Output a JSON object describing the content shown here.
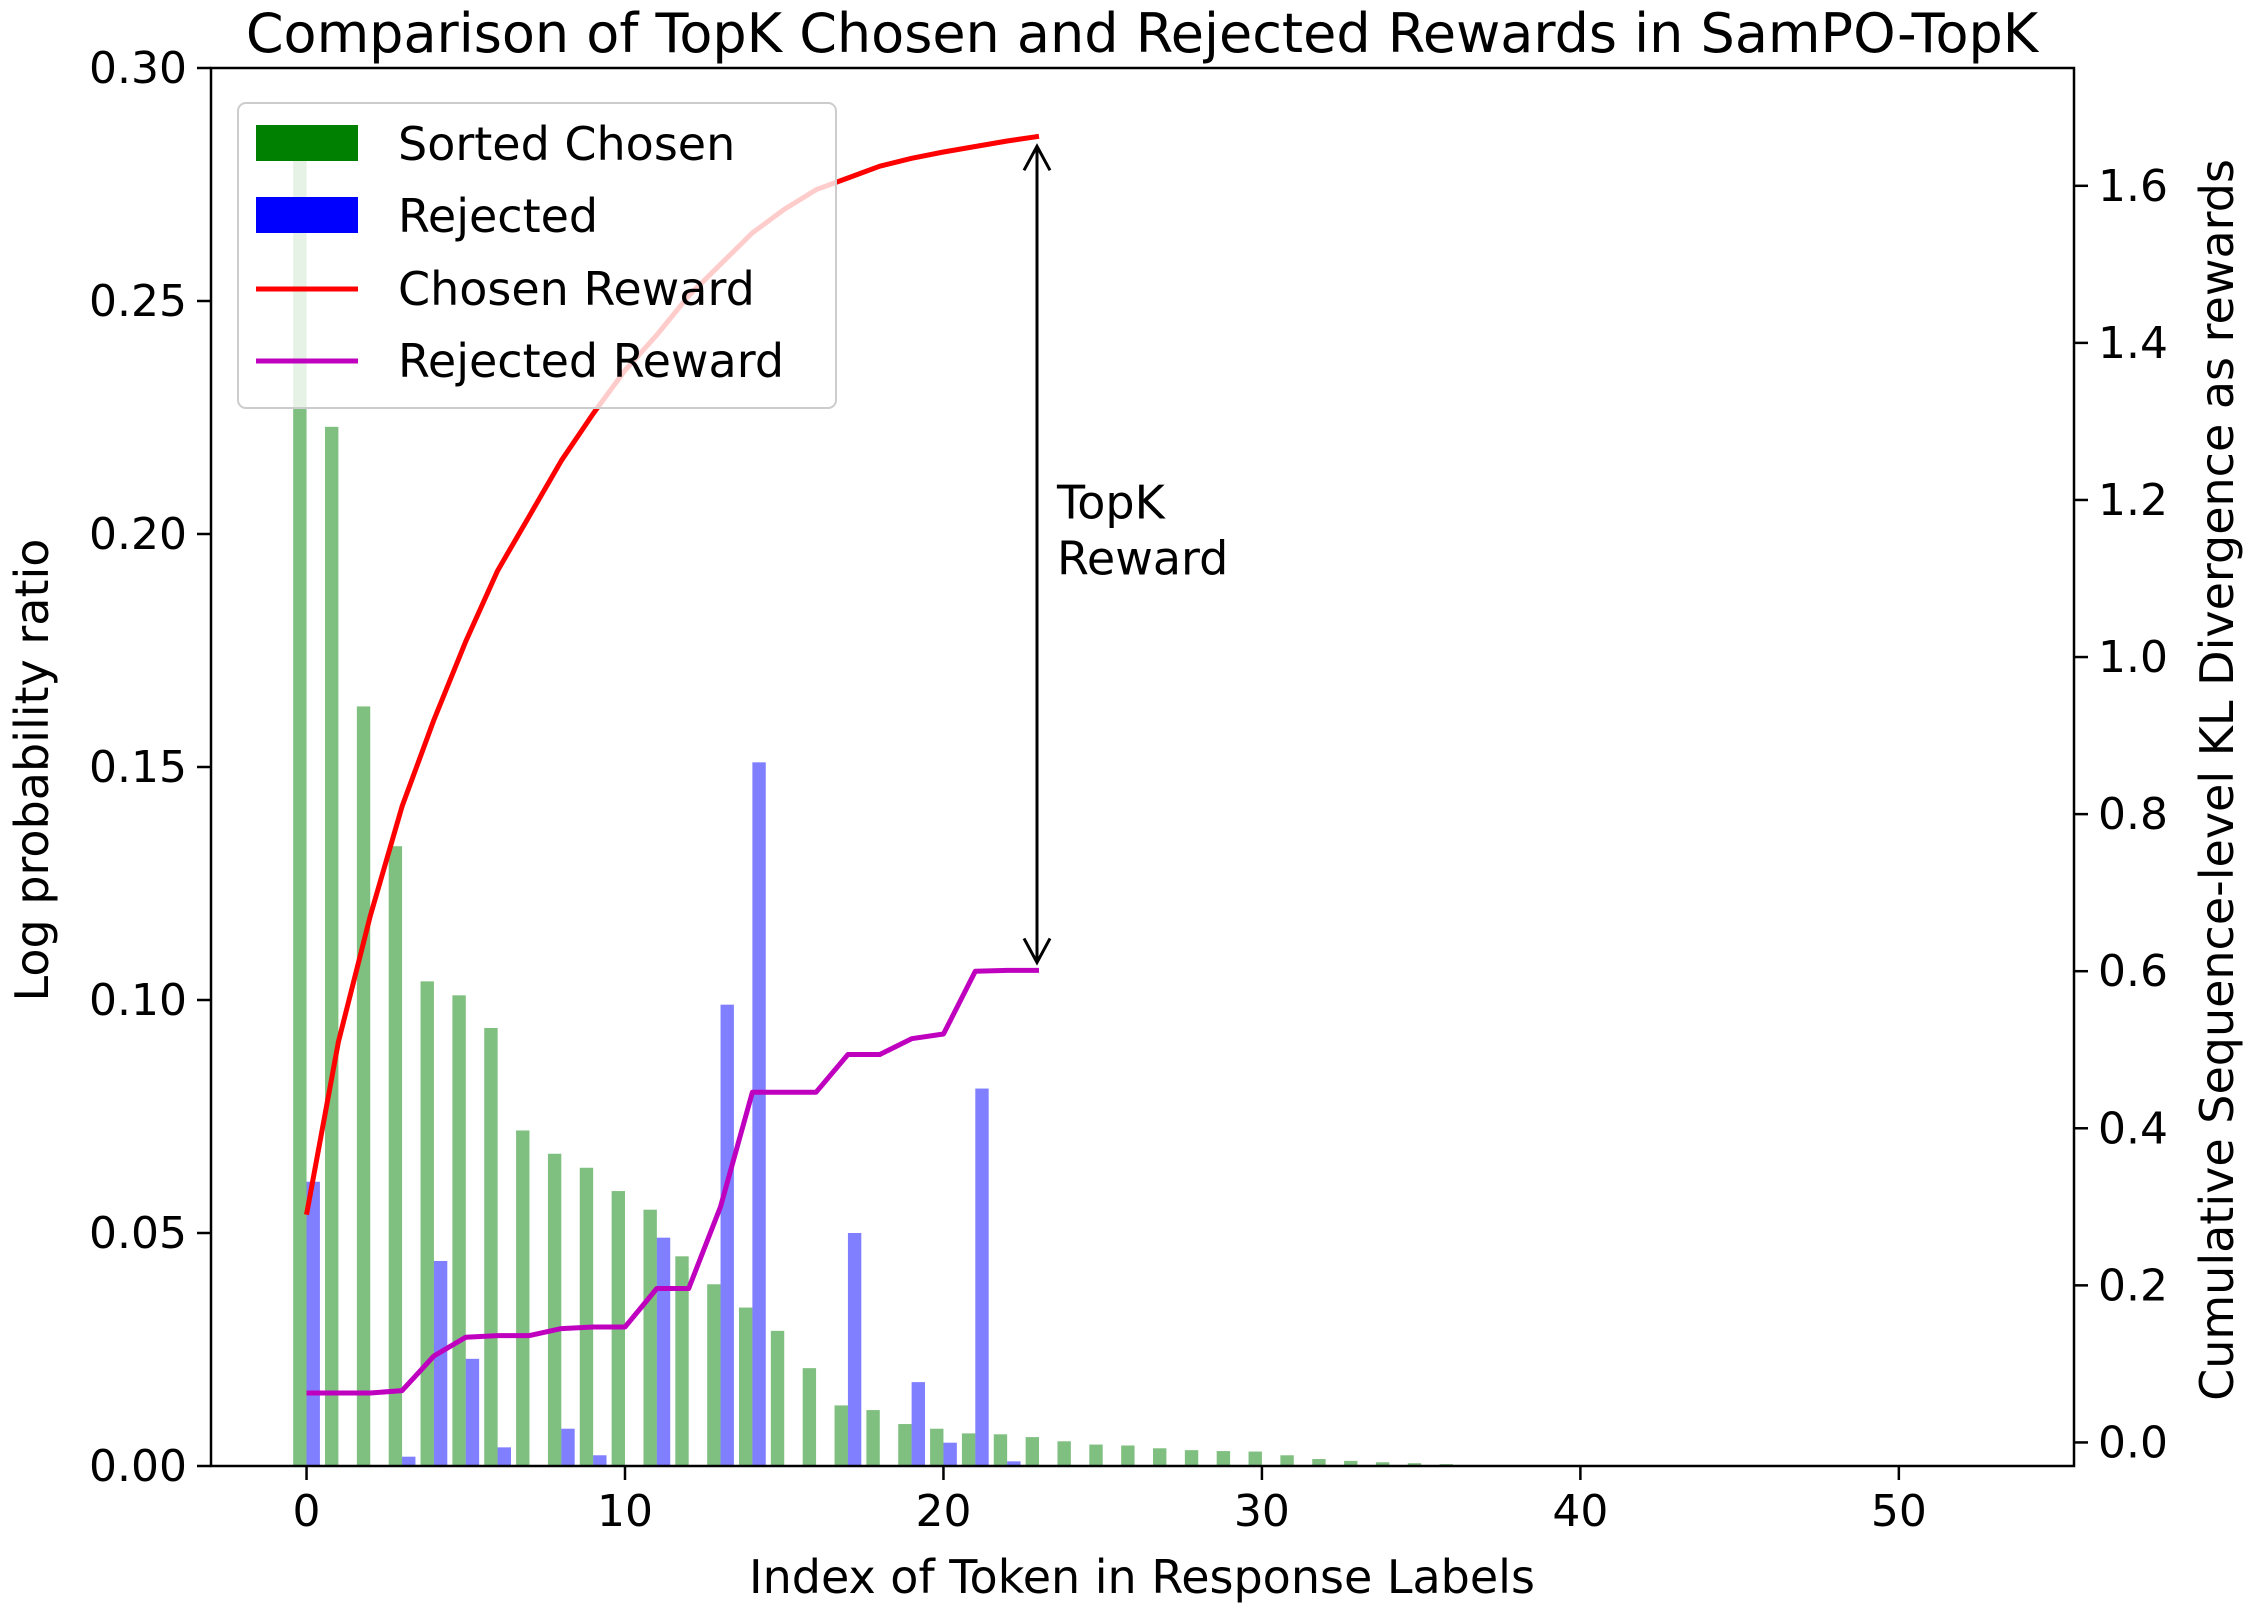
{
  "chart_data": {
    "type": "bar",
    "title": "Comparison of TopK Chosen and Rejected Rewards in SamPO-TopK",
    "xlabel": "Index of Token in Response Labels",
    "ylabel": "Log probability ratio",
    "y2label": "Cumulative Sequence-level KL Divergence as rewards",
    "xlim": [
      -3,
      55.5
    ],
    "ylim": [
      0,
      0.3
    ],
    "y2lim": [
      -0.03,
      1.75
    ],
    "xticks": [
      0,
      10,
      20,
      30,
      40,
      50
    ],
    "xtick_labels": [
      "0",
      "10",
      "20",
      "30",
      "40",
      "50"
    ],
    "yticks": [
      0,
      0.05,
      0.1,
      0.15,
      0.2,
      0.25,
      0.3
    ],
    "ytick_labels": [
      "0.00",
      "0.05",
      "0.10",
      "0.15",
      "0.20",
      "0.25",
      "0.30"
    ],
    "y2ticks": [
      0,
      0.2,
      0.4,
      0.6,
      0.8,
      1.0,
      1.2,
      1.4,
      1.6
    ],
    "y2tick_labels": [
      "0.0",
      "0.2",
      "0.4",
      "0.6",
      "0.8",
      "1.0",
      "1.2",
      "1.4",
      "1.6"
    ],
    "legend_position": "top-left",
    "bar_series": [
      {
        "name": "Sorted Chosen",
        "color": "#008000",
        "x": [
          0,
          1,
          2,
          3,
          4,
          5,
          6,
          7,
          8,
          9,
          10,
          11,
          12,
          13,
          14,
          15,
          16,
          17,
          18,
          19,
          20,
          21,
          22,
          23,
          24,
          25,
          26,
          27,
          28,
          29,
          30,
          31,
          32,
          33,
          34,
          35,
          36
        ],
        "values": [
          0.287,
          0.223,
          0.163,
          0.133,
          0.104,
          0.101,
          0.094,
          0.072,
          0.067,
          0.064,
          0.059,
          0.055,
          0.045,
          0.039,
          0.034,
          0.029,
          0.021,
          0.013,
          0.012,
          0.009,
          0.008,
          0.007,
          0.0068,
          0.0062,
          0.0053,
          0.0046,
          0.0044,
          0.0038,
          0.0034,
          0.0032,
          0.0031,
          0.0023,
          0.0015,
          0.0011,
          0.0008,
          0.0006,
          0.0004
        ]
      },
      {
        "name": "Rejected",
        "color": "#0000ff",
        "x": [
          0,
          3,
          4,
          5,
          6,
          8,
          9,
          11,
          13,
          14,
          17,
          19,
          20,
          21,
          22
        ],
        "values": [
          0.061,
          0.002,
          0.044,
          0.023,
          0.004,
          0.008,
          0.0023,
          0.049,
          0.099,
          0.151,
          0.05,
          0.018,
          0.005,
          0.081,
          0.001
        ]
      }
    ],
    "line_series": [
      {
        "name": "Chosen Reward",
        "color": "#ff0000",
        "axis": "right",
        "x": [
          0,
          1,
          2,
          3,
          4,
          5,
          6,
          7,
          8,
          9,
          10,
          11,
          12,
          13,
          14,
          15,
          16,
          17,
          18,
          19,
          20,
          21,
          22,
          23
        ],
        "values": [
          0.29,
          0.51,
          0.67,
          0.81,
          0.92,
          1.02,
          1.11,
          1.18,
          1.25,
          1.31,
          1.365,
          1.41,
          1.46,
          1.5,
          1.54,
          1.57,
          1.595,
          1.61,
          1.625,
          1.635,
          1.643,
          1.65,
          1.657,
          1.663
        ]
      },
      {
        "name": "Rejected Reward",
        "color": "#bf00bf",
        "axis": "right",
        "x": [
          0,
          1,
          2,
          3,
          4,
          5,
          6,
          7,
          8,
          9,
          10,
          11,
          12,
          13,
          14,
          15,
          16,
          17,
          18,
          19,
          20,
          21,
          22,
          23
        ],
        "values": [
          0.063,
          0.063,
          0.063,
          0.066,
          0.11,
          0.134,
          0.136,
          0.136,
          0.145,
          0.147,
          0.147,
          0.196,
          0.196,
          0.3,
          0.446,
          0.446,
          0.446,
          0.494,
          0.494,
          0.514,
          0.52,
          0.6,
          0.601,
          0.601
        ]
      }
    ],
    "annotation": {
      "line1": "TopK",
      "line2": "Reward",
      "x": 23,
      "y_top": 1.663,
      "y_bottom": 0.601
    }
  }
}
